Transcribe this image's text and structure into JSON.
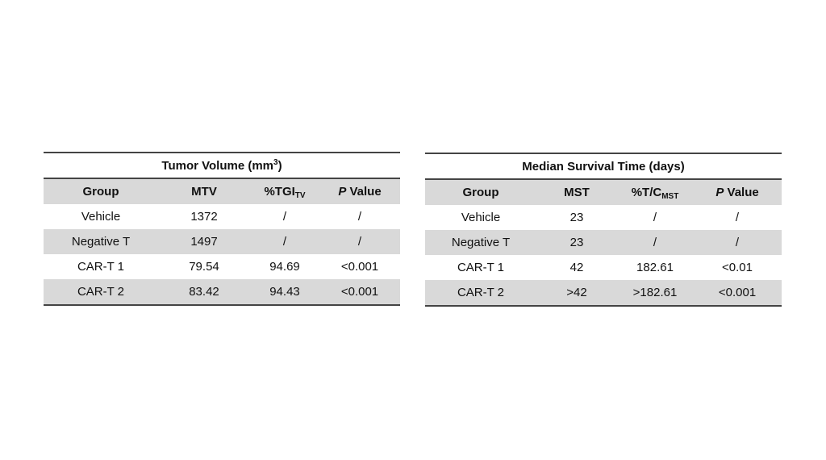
{
  "tables": [
    {
      "title": "Tumor Volume (mm",
      "title_sup": "3",
      "title_end": ")",
      "headers": [
        {
          "text": "Group"
        },
        {
          "text": "MTV"
        },
        {
          "text": "%TGI",
          "sub": "TV"
        },
        {
          "italic": "P",
          "text": " Value"
        }
      ],
      "rows": [
        [
          "Vehicle",
          "1372",
          "/",
          "/"
        ],
        [
          "Negative T",
          "1497",
          "/",
          "/"
        ],
        [
          "CAR-T 1",
          "79.54",
          "94.69",
          "<0.001"
        ],
        [
          "CAR-T 2",
          "83.42",
          "94.43",
          "<0.001"
        ]
      ]
    },
    {
      "title": "Median Survival Time (days)",
      "headers": [
        {
          "text": "Group"
        },
        {
          "text": "MST"
        },
        {
          "text": "%T/C",
          "sub": "MST"
        },
        {
          "italic": "P",
          "text": " Value"
        }
      ],
      "rows": [
        [
          "Vehicle",
          "23",
          "/",
          "/"
        ],
        [
          "Negative T",
          "23",
          "/",
          "/"
        ],
        [
          "CAR-T 1",
          "42",
          "182.61",
          "<0.01"
        ],
        [
          "CAR-T 2",
          ">42",
          ">182.61",
          "<0.001"
        ]
      ]
    }
  ],
  "colors": {
    "shaded_row": "#d9d9d9",
    "rule": "#444444"
  }
}
